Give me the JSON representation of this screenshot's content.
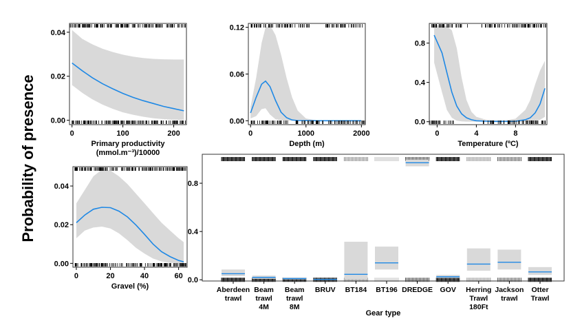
{
  "y_label": "Probability of presence",
  "chart_data": [
    {
      "type": "line",
      "xlabel": [
        "Primary productivity",
        "(mmol.m⁻³)/10000"
      ],
      "xlim": [
        -5,
        225
      ],
      "ylim": [
        -0.002,
        0.044
      ],
      "xticks": [
        "0",
        "100",
        "200"
      ],
      "xtick_values": [
        0,
        100,
        200
      ],
      "yticks": [
        "0.00",
        "0.02",
        "0.04"
      ],
      "ytick_values": [
        0,
        0.02,
        0.04
      ],
      "x": [
        0,
        20,
        40,
        60,
        80,
        100,
        120,
        140,
        160,
        180,
        200,
        220
      ],
      "y": [
        0.026,
        0.0225,
        0.0193,
        0.0166,
        0.0143,
        0.0122,
        0.0104,
        0.0089,
        0.0076,
        0.0063,
        0.0053,
        0.0043
      ],
      "lower": [
        0.016,
        0.0125,
        0.0095,
        0.0071,
        0.0052,
        0.0036,
        0.0025,
        0.0016,
        0.0009,
        0.0005,
        0.0002,
        0.0001
      ],
      "upper": [
        0.041,
        0.037,
        0.0345,
        0.0325,
        0.031,
        0.0298,
        0.0289,
        0.0283,
        0.0279,
        0.0277,
        0.0276,
        0.0276
      ]
    },
    {
      "type": "line",
      "xlabel": [
        "Depth (m)"
      ],
      "xlim": [
        -40,
        2070
      ],
      "ylim": [
        -0.005,
        0.125
      ],
      "xticks": [
        "0",
        "1000",
        "2000"
      ],
      "xtick_values": [
        0,
        1000,
        2000
      ],
      "yticks": [
        "0.00",
        "0.06",
        "0.12"
      ],
      "ytick_values": [
        0,
        0.06,
        0.12
      ],
      "x": [
        0,
        100,
        200,
        270,
        350,
        450,
        550,
        650,
        750,
        850,
        1000,
        1200,
        1500,
        2000
      ],
      "y": [
        0.01,
        0.03,
        0.047,
        0.051,
        0.044,
        0.026,
        0.011,
        0.004,
        0.001,
        0.0003,
        0.0001,
        0,
        0,
        0
      ],
      "lower": [
        0.003,
        0.006,
        0.015,
        0.016,
        0.008,
        0.002,
        0.0005,
        0.0001,
        0,
        0,
        0,
        0,
        0,
        0
      ],
      "upper": [
        0.018,
        0.055,
        0.1,
        0.12,
        0.123,
        0.11,
        0.085,
        0.055,
        0.03,
        0.013,
        0.003,
        0.0005,
        0,
        0
      ]
    },
    {
      "type": "line",
      "xlabel": [
        "Temperature (ºC)"
      ],
      "xlim": [
        -0.8,
        11.2
      ],
      "ylim": [
        -0.03,
        1.0
      ],
      "xticks": [
        "0",
        "4",
        "8"
      ],
      "xtick_values": [
        0,
        4,
        8
      ],
      "yticks": [
        "0.0",
        "0.4",
        "0.8"
      ],
      "ytick_values": [
        0,
        0.4,
        0.8
      ],
      "x": [
        -0.3,
        0.5,
        1,
        1.5,
        2,
        2.5,
        3,
        3.5,
        4,
        5,
        6,
        7,
        8,
        9,
        9.5,
        10,
        10.5,
        11
      ],
      "y": [
        0.88,
        0.7,
        0.5,
        0.3,
        0.16,
        0.08,
        0.04,
        0.02,
        0.01,
        0.005,
        0.003,
        0.003,
        0.005,
        0.02,
        0.04,
        0.09,
        0.18,
        0.34
      ],
      "lower": [
        0.6,
        0.3,
        0.12,
        0.04,
        0.01,
        0.003,
        0.001,
        0.0005,
        0.0003,
        0.0002,
        0.0002,
        0.0002,
        0.0003,
        0.001,
        0.003,
        0.008,
        0.02,
        0.05
      ],
      "upper": [
        0.98,
        0.98,
        0.97,
        0.93,
        0.75,
        0.45,
        0.22,
        0.1,
        0.05,
        0.02,
        0.015,
        0.015,
        0.03,
        0.12,
        0.22,
        0.38,
        0.52,
        0.62
      ]
    },
    {
      "type": "line",
      "xlabel": [
        "Gravel (%)"
      ],
      "xlim": [
        -2,
        65
      ],
      "ylim": [
        -0.002,
        0.05
      ],
      "xticks": [
        "0",
        "20",
        "40",
        "60"
      ],
      "xtick_values": [
        0,
        20,
        40,
        60
      ],
      "yticks": [
        "0.00",
        "0.02",
        "0.04"
      ],
      "ytick_values": [
        0,
        0.02,
        0.04
      ],
      "x": [
        0,
        5,
        10,
        15,
        20,
        25,
        30,
        35,
        40,
        45,
        50,
        55,
        60,
        63
      ],
      "y": [
        0.021,
        0.025,
        0.028,
        0.029,
        0.0288,
        0.027,
        0.024,
        0.0198,
        0.015,
        0.01,
        0.006,
        0.0035,
        0.0015,
        0.0008
      ],
      "lower": [
        0.013,
        0.017,
        0.0185,
        0.019,
        0.018,
        0.0155,
        0.012,
        0.008,
        0.005,
        0.0025,
        0.001,
        0.0003,
        0.0001,
        0
      ],
      "upper": [
        0.031,
        0.038,
        0.045,
        0.0485,
        0.048,
        0.045,
        0.041,
        0.036,
        0.031,
        0.026,
        0.021,
        0.017,
        0.013,
        0.011
      ]
    },
    {
      "type": "bar",
      "xlabel": [
        "Gear type"
      ],
      "ylim": [
        -0.01,
        1.04
      ],
      "yticks": [
        "0.0",
        "0.4",
        "0.8"
      ],
      "ytick_values": [
        0,
        0.4,
        0.8
      ],
      "categories": [
        [
          "Aberdeen",
          "trawl"
        ],
        [
          "Beam",
          "trawl",
          "4M"
        ],
        [
          "Beam",
          "trawl",
          "8M"
        ],
        [
          "BRUV"
        ],
        [
          "BT184"
        ],
        [
          "BT196"
        ],
        [
          "DREDGE"
        ],
        [
          "GOV"
        ],
        [
          "Herring",
          "Trawl",
          "180Ft"
        ],
        [
          "Jackson",
          "trawl"
        ],
        [
          "Otter",
          "Trawl"
        ]
      ],
      "values": [
        0.05,
        0.02,
        0.01,
        0.003,
        0.045,
        0.14,
        0.97,
        0.025,
        0.13,
        0.145,
        0.065
      ],
      "lower": [
        0.03,
        0.008,
        0.003,
        0.0,
        0.005,
        0.085,
        0.94,
        0.015,
        0.075,
        0.085,
        0.04
      ],
      "upper": [
        0.085,
        0.035,
        0.02,
        0.008,
        0.315,
        0.275,
        0.995,
        0.04,
        0.26,
        0.25,
        0.105
      ]
    }
  ],
  "colors": {
    "fit": "#1e88e5",
    "band": "#d9d9d9"
  }
}
